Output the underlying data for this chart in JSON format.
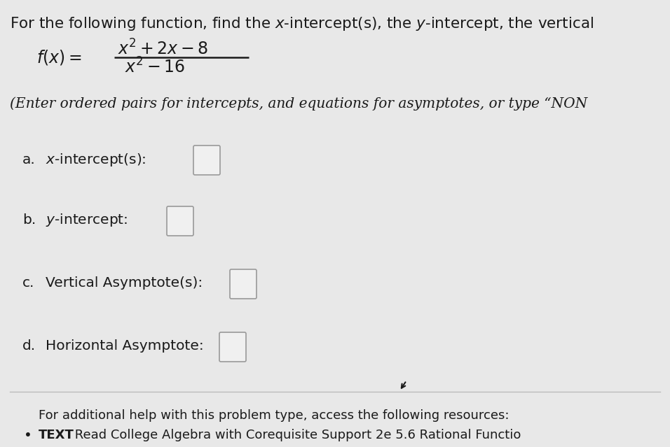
{
  "background_color": "#e8e8e8",
  "title_text": "For the following function, find the $x$-intercept(s), the $y$-intercept, the vertical",
  "function_numerator": "$x^2 + 2x - 8$",
  "function_denominator": "$x^2 - 16$",
  "function_label": "$f(x) =$",
  "instruction_text": "(Enter ordered pairs for intercepts, and equations for asymptotes, or type “NON",
  "parts": [
    {
      "label": "a.",
      "text": "$x$-intercept(s):"
    },
    {
      "label": "b.",
      "text": "$y$-intercept:"
    },
    {
      "label": "c.",
      "text": "Vertical Asymptote(s):"
    },
    {
      "label": "d.",
      "text": "Horizontal Asymptote:"
    }
  ],
  "footer_text": "For additional help with this problem type, access the following resources:",
  "bullet_text": "Read College Algebra with Corequisite Support 2e 5.6 Rational Functio",
  "bullet_bold": "TEXT",
  "text_color": "#1a1a1a",
  "box_color": "#f0f0f0",
  "box_border": "#999999",
  "line_color": "#bbbbbb",
  "title_fontsize": 15.5,
  "body_fontsize": 14.5,
  "small_fontsize": 13.0,
  "math_fontsize": 17.0
}
